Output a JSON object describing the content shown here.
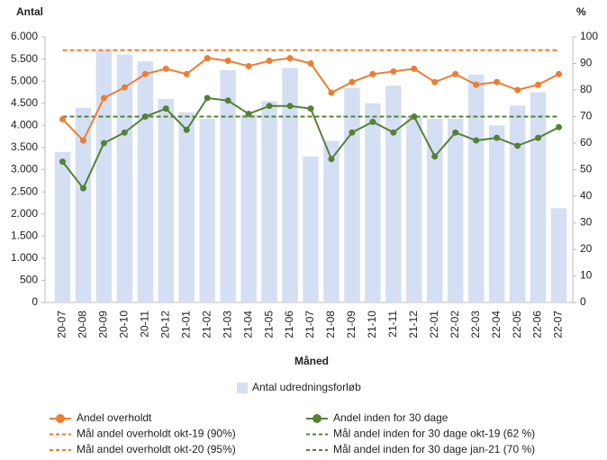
{
  "chart_data": {
    "type": "bar-line",
    "y_label": "Antal",
    "y2_label": "%",
    "x_label": "Måned",
    "categories": [
      "20-07",
      "20-08",
      "20-09",
      "20-10",
      "20-11",
      "20-12",
      "21-01",
      "21-02",
      "21-03",
      "21-04",
      "21-05",
      "21-06",
      "21-07",
      "21-08",
      "21-09",
      "21-10",
      "21-11",
      "21-12",
      "22-01",
      "22-02",
      "22-03",
      "22-04",
      "22-05",
      "22-06",
      "22-07"
    ],
    "ylim": [
      0,
      6000
    ],
    "yticks": [
      0,
      500,
      {
        "value": 1000,
        "label": "1.000"
      },
      {
        "value": 1500,
        "label": "1.500"
      },
      {
        "value": 2000,
        "label": "2.000"
      },
      {
        "value": 2500,
        "label": "2.500"
      },
      {
        "value": 3000,
        "label": "3.000"
      },
      {
        "value": 3500,
        "label": "3.500"
      },
      {
        "value": 4000,
        "label": "4.000"
      },
      {
        "value": 4500,
        "label": "4.500"
      },
      {
        "value": 5000,
        "label": "5.000"
      },
      {
        "value": 5500,
        "label": "5.500"
      },
      {
        "value": 6000,
        "label": "6.000"
      }
    ],
    "y2lim": [
      0,
      100
    ],
    "y2ticks": [
      0,
      10,
      20,
      30,
      40,
      50,
      60,
      70,
      80,
      90,
      100
    ],
    "series": [
      {
        "name": "Antal udredningsforløb",
        "type": "bar",
        "color": "#d5dff3",
        "values": [
          3400,
          4400,
          5700,
          5600,
          5450,
          4600,
          4300,
          4150,
          5250,
          4250,
          4550,
          5300,
          3300,
          3650,
          4850,
          4500,
          4900,
          4200,
          4150,
          4150,
          5150,
          4000,
          4450,
          4750,
          2130
        ]
      },
      {
        "name": "Andel overholdt",
        "type": "line",
        "axis": "y2",
        "color": "#ed7d31",
        "values": [
          69,
          61,
          77,
          81,
          86,
          88,
          86,
          92,
          91,
          89,
          91,
          92,
          90,
          79,
          83,
          86,
          87,
          88,
          83,
          86,
          82,
          83,
          80,
          82,
          86
        ]
      },
      {
        "name": "Andel inden for 30 dage",
        "type": "line",
        "axis": "y2",
        "color": "#548235",
        "values": [
          53,
          43,
          60,
          64,
          70,
          73,
          65,
          77,
          76,
          71,
          74,
          74,
          73,
          54,
          64,
          68,
          64,
          70,
          55,
          64,
          61,
          62,
          59,
          62,
          66
        ]
      }
    ],
    "targets": [
      {
        "name": "Mål andel overholdt okt-19 (90%)",
        "color": "#ed7d31"
      },
      {
        "name": "Mål andel overholdt okt-20 (95%)",
        "color": "#ed7d31",
        "value": 95
      },
      {
        "name": "Mål andel inden for 30 dage okt-19 (62 %)",
        "color": "#548235"
      },
      {
        "name": "Mål andel inden for 30 dage jan-21 (70 %)",
        "color": "#548235",
        "value": 70
      }
    ]
  }
}
